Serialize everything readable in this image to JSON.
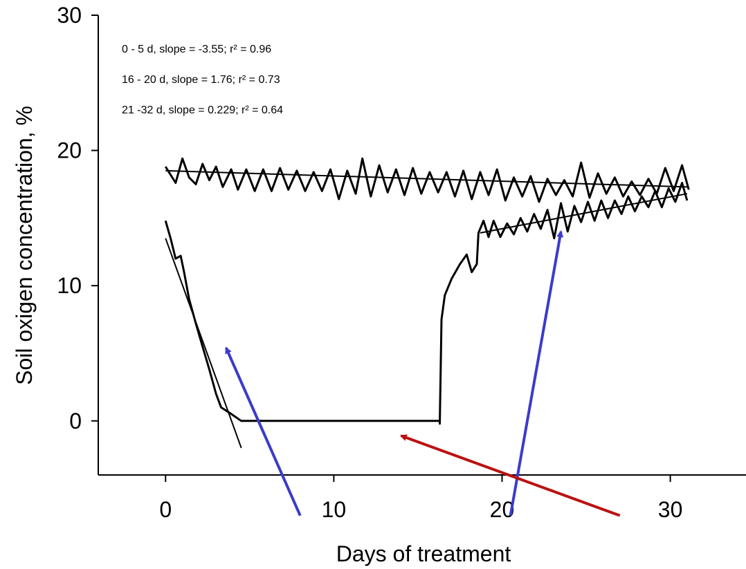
{
  "chart_data": {
    "type": "line",
    "title": "",
    "xlabel": "Days of treatment",
    "ylabel": "Soil oxigen concentration, %",
    "xlim": [
      -4,
      34.5
    ],
    "ylim": [
      -4,
      30
    ],
    "x_ticks": [
      0,
      10,
      20,
      30
    ],
    "y_ticks": [
      0,
      10,
      20,
      30
    ],
    "grid": false,
    "legend": "none",
    "annotations": [
      "0 - 5 d, slope = -3.55; r² = 0.96",
      "16 - 20 d, slope = 1.76; r² = 0.73",
      "21 -32 d, slope = 0.229; r² = 0.64"
    ],
    "series": [
      {
        "color": "#000000",
        "points": [
          [
            0,
            18.8
          ],
          [
            0.3,
            18.2
          ],
          [
            0.6,
            17.6
          ],
          [
            1,
            19.4
          ],
          [
            1.4,
            18.0
          ],
          [
            1.8,
            17.5
          ],
          [
            2.2,
            19.0
          ],
          [
            2.6,
            17.8
          ],
          [
            3,
            18.8
          ],
          [
            3.4,
            17.3
          ],
          [
            3.9,
            18.6
          ],
          [
            4.3,
            17.1
          ],
          [
            4.8,
            18.6
          ],
          [
            5.3,
            17.0
          ],
          [
            5.8,
            18.6
          ],
          [
            6.3,
            17.0
          ],
          [
            6.8,
            18.7
          ],
          [
            7.3,
            17.1
          ],
          [
            7.8,
            18.5
          ],
          [
            8.3,
            17.0
          ],
          [
            8.8,
            18.4
          ],
          [
            9.3,
            17.0
          ],
          [
            9.8,
            18.6
          ],
          [
            10.3,
            16.4
          ],
          [
            10.8,
            18.5
          ],
          [
            11.3,
            16.8
          ],
          [
            11.7,
            19.4
          ],
          [
            12.2,
            16.6
          ],
          [
            12.7,
            18.9
          ],
          [
            13.2,
            16.9
          ],
          [
            13.7,
            18.6
          ],
          [
            14.2,
            16.7
          ],
          [
            14.7,
            18.7
          ],
          [
            15.2,
            16.8
          ],
          [
            15.7,
            18.4
          ],
          [
            16.2,
            16.9
          ],
          [
            16.7,
            18.4
          ],
          [
            17.2,
            16.6
          ],
          [
            17.7,
            18.5
          ],
          [
            18.2,
            16.4
          ],
          [
            18.7,
            18.4
          ],
          [
            19.2,
            16.7
          ],
          [
            19.7,
            18.6
          ],
          [
            20.2,
            16.3
          ],
          [
            20.7,
            18.0
          ],
          [
            21.2,
            16.6
          ],
          [
            21.7,
            18.1
          ],
          [
            22.2,
            16.2
          ],
          [
            22.7,
            17.9
          ],
          [
            23.2,
            16.7
          ],
          [
            23.7,
            17.8
          ],
          [
            24.2,
            16.6
          ],
          [
            24.7,
            19.1
          ],
          [
            25.2,
            16.5
          ],
          [
            25.7,
            18.3
          ],
          [
            26.2,
            16.8
          ],
          [
            26.7,
            18.0
          ],
          [
            27.2,
            16.6
          ],
          [
            27.7,
            17.7
          ],
          [
            28.2,
            16.7
          ],
          [
            28.7,
            17.9
          ],
          [
            29.2,
            16.8
          ],
          [
            29.7,
            18.7
          ],
          [
            30.2,
            17.0
          ],
          [
            30.7,
            18.9
          ],
          [
            31.1,
            17.1
          ]
        ]
      },
      {
        "color": "#000000",
        "points": [
          [
            0,
            14.8
          ],
          [
            0.3,
            13.5
          ],
          [
            0.6,
            12.0
          ],
          [
            0.9,
            12.2
          ],
          [
            1.1,
            11.0
          ],
          [
            1.4,
            9.0
          ],
          [
            1.8,
            7.2
          ],
          [
            2.2,
            5.5
          ],
          [
            2.6,
            3.8
          ],
          [
            3,
            2.0
          ],
          [
            3.3,
            1.0
          ],
          [
            3.8,
            0.6
          ],
          [
            4.5,
            0
          ],
          [
            10,
            0
          ],
          [
            16.3,
            0
          ],
          [
            16.3,
            -0.2
          ],
          [
            16.4,
            7.5
          ],
          [
            16.6,
            9.3
          ],
          [
            17,
            10.5
          ],
          [
            17.5,
            11.6
          ],
          [
            17.9,
            12.3
          ],
          [
            18.2,
            11.0
          ],
          [
            18.5,
            11.6
          ],
          [
            18.6,
            13.9
          ],
          [
            18.9,
            14.8
          ],
          [
            19.2,
            13.6
          ],
          [
            19.5,
            14.8
          ],
          [
            19.9,
            13.6
          ],
          [
            20.3,
            14.6
          ],
          [
            20.7,
            13.8
          ],
          [
            21.1,
            15.0
          ],
          [
            21.5,
            14.0
          ],
          [
            21.9,
            15.3
          ],
          [
            22.3,
            14.2
          ],
          [
            22.7,
            15.6
          ],
          [
            23.1,
            13.5
          ],
          [
            23.5,
            16.1
          ],
          [
            23.9,
            14.0
          ],
          [
            24.3,
            15.9
          ],
          [
            24.7,
            14.7
          ],
          [
            25.1,
            16.2
          ],
          [
            25.5,
            14.8
          ],
          [
            25.9,
            16.3
          ],
          [
            26.3,
            15.0
          ],
          [
            26.7,
            16.3
          ],
          [
            27.1,
            15.3
          ],
          [
            27.5,
            16.6
          ],
          [
            27.9,
            15.5
          ],
          [
            28.3,
            16.6
          ],
          [
            28.7,
            15.8
          ],
          [
            29.1,
            17.0
          ],
          [
            29.5,
            15.8
          ],
          [
            29.9,
            17.2
          ],
          [
            30.3,
            16.2
          ],
          [
            30.7,
            17.6
          ],
          [
            31.0,
            16.3
          ]
        ]
      }
    ],
    "fit_lines": [
      {
        "x": [
          0,
          4.5
        ],
        "y": [
          13.5,
          -2.0
        ]
      },
      {
        "x": [
          0,
          31
        ],
        "y": [
          18.5,
          17.3
        ]
      },
      {
        "x": [
          18.7,
          31
        ],
        "y": [
          13.9,
          16.8
        ]
      }
    ],
    "arrows": [
      {
        "color": "#3b3bcc",
        "from": [
          8,
          -7
        ],
        "to": [
          3.6,
          5.4
        ]
      },
      {
        "color": "#3b3bcc",
        "from": [
          20.5,
          -7
        ],
        "to": [
          23.5,
          14.0
        ]
      },
      {
        "color": "#bb1111",
        "from": [
          27,
          -7
        ],
        "to": [
          14,
          -1.1
        ]
      }
    ]
  }
}
